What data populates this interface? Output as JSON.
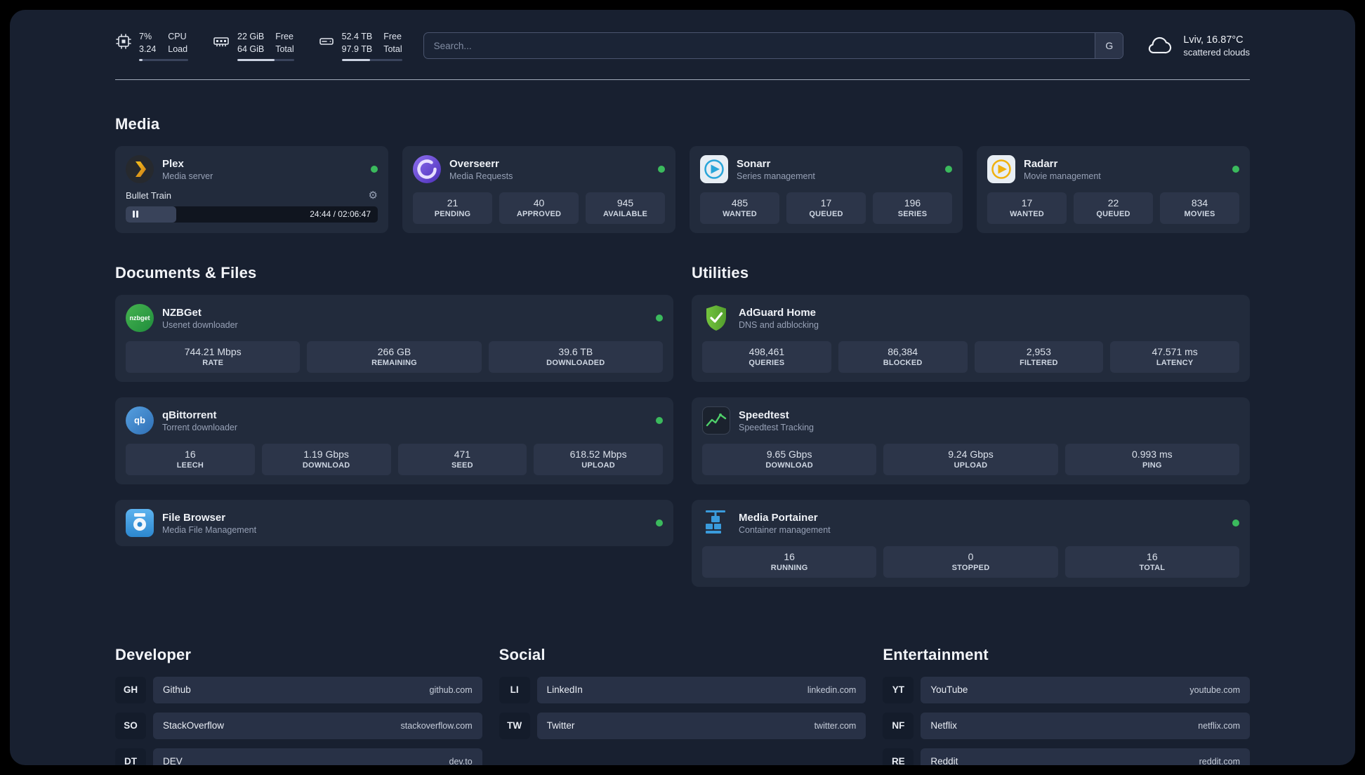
{
  "topbar": {
    "cpu": {
      "line1": "7%",
      "line2": "3.24",
      "label1": "CPU",
      "label2": "Load",
      "bar": 7
    },
    "ram": {
      "line1": "22 GiB",
      "line2": "64 GiB",
      "label1": "Free",
      "label2": "Total",
      "bar": 66
    },
    "disk": {
      "line1": "52.4 TB",
      "line2": "97.9 TB",
      "label1": "Free",
      "label2": "Total",
      "bar": 47
    },
    "search": {
      "placeholder": "Search...",
      "engine_badge": "G"
    },
    "weather": {
      "location": "Lviv, 16.87°C",
      "condition": "scattered clouds"
    }
  },
  "media": {
    "title": "Media",
    "plex": {
      "name": "Plex",
      "subtitle": "Media server",
      "online": true,
      "now_playing": {
        "title": "Bullet Train",
        "time": "24:44 / 02:06:47",
        "progress": 20
      }
    },
    "overseerr": {
      "name": "Overseerr",
      "subtitle": "Media Requests",
      "online": true,
      "stats": [
        {
          "value": "21",
          "label": "PENDING"
        },
        {
          "value": "40",
          "label": "APPROVED"
        },
        {
          "value": "945",
          "label": "AVAILABLE"
        }
      ]
    },
    "sonarr": {
      "name": "Sonarr",
      "subtitle": "Series management",
      "online": true,
      "stats": [
        {
          "value": "485",
          "label": "WANTED"
        },
        {
          "value": "17",
          "label": "QUEUED"
        },
        {
          "value": "196",
          "label": "SERIES"
        }
      ]
    },
    "radarr": {
      "name": "Radarr",
      "subtitle": "Movie management",
      "online": true,
      "stats": [
        {
          "value": "17",
          "label": "WANTED"
        },
        {
          "value": "22",
          "label": "QUEUED"
        },
        {
          "value": "834",
          "label": "MOVIES"
        }
      ]
    }
  },
  "documents": {
    "title": "Documents & Files",
    "nzbget": {
      "name": "NZBGet",
      "subtitle": "Usenet downloader",
      "online": true,
      "icon_text": "nzbget",
      "stats": [
        {
          "value": "744.21 Mbps",
          "label": "RATE"
        },
        {
          "value": "266 GB",
          "label": "REMAINING"
        },
        {
          "value": "39.6 TB",
          "label": "DOWNLOADED"
        }
      ]
    },
    "qbittorrent": {
      "name": "qBittorrent",
      "subtitle": "Torrent downloader",
      "online": true,
      "icon_text": "qb",
      "stats": [
        {
          "value": "16",
          "label": "LEECH"
        },
        {
          "value": "1.19 Gbps",
          "label": "DOWNLOAD"
        },
        {
          "value": "471",
          "label": "SEED"
        },
        {
          "value": "618.52 Mbps",
          "label": "UPLOAD"
        }
      ]
    },
    "filebrowser": {
      "name": "File Browser",
      "subtitle": "Media File Management",
      "online": true
    }
  },
  "utilities": {
    "title": "Utilities",
    "adguard": {
      "name": "AdGuard Home",
      "subtitle": "DNS and adblocking",
      "stats": [
        {
          "value": "498,461",
          "label": "QUERIES"
        },
        {
          "value": "86,384",
          "label": "BLOCKED"
        },
        {
          "value": "2,953",
          "label": "FILTERED"
        },
        {
          "value": "47.571 ms",
          "label": "LATENCY"
        }
      ]
    },
    "speedtest": {
      "name": "Speedtest",
      "subtitle": "Speedtest Tracking",
      "stats": [
        {
          "value": "9.65 Gbps",
          "label": "DOWNLOAD"
        },
        {
          "value": "9.24 Gbps",
          "label": "UPLOAD"
        },
        {
          "value": "0.993 ms",
          "label": "PING"
        }
      ]
    },
    "portainer": {
      "name": "Media Portainer",
      "subtitle": "Container management",
      "online": true,
      "stats": [
        {
          "value": "16",
          "label": "RUNNING"
        },
        {
          "value": "0",
          "label": "STOPPED"
        },
        {
          "value": "16",
          "label": "TOTAL"
        }
      ]
    }
  },
  "bookmarks": {
    "developer": {
      "title": "Developer",
      "items": [
        {
          "abbr": "GH",
          "name": "Github",
          "url": "github.com"
        },
        {
          "abbr": "SO",
          "name": "StackOverflow",
          "url": "stackoverflow.com"
        },
        {
          "abbr": "DT",
          "name": "DEV",
          "url": "dev.to"
        }
      ]
    },
    "social": {
      "title": "Social",
      "items": [
        {
          "abbr": "LI",
          "name": "LinkedIn",
          "url": "linkedin.com"
        },
        {
          "abbr": "TW",
          "name": "Twitter",
          "url": "twitter.com"
        }
      ]
    },
    "entertainment": {
      "title": "Entertainment",
      "items": [
        {
          "abbr": "YT",
          "name": "YouTube",
          "url": "youtube.com"
        },
        {
          "abbr": "NF",
          "name": "Netflix",
          "url": "netflix.com"
        },
        {
          "abbr": "RE",
          "name": "Reddit",
          "url": "reddit.com"
        }
      ]
    }
  }
}
